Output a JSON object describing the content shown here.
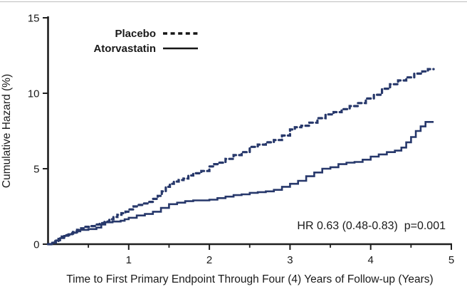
{
  "chart_data": {
    "type": "line",
    "subtype": "step-survival",
    "title": "",
    "xlabel": "Time to First Primary Endpoint Through Four (4) Years of Follow-up (Years)",
    "ylabel": "Cumulative Hazard (%)",
    "xlim": [
      0,
      5
    ],
    "ylim": [
      0,
      15
    ],
    "x_major_ticks": [
      1,
      2,
      3,
      4,
      5
    ],
    "x_minor_ticks": [
      0.5,
      1.5,
      2.5,
      3.5,
      4.5
    ],
    "y_ticks": [
      0,
      5,
      10,
      15
    ],
    "grid": "off",
    "legend_position": "top-left-inside",
    "annotation": "HR 0.63 (0.48-0.83)  p=0.001",
    "curve_color": "#27386b",
    "legend_sample_color": "#161616",
    "axis_color": "#1f1f1f",
    "legend": [
      {
        "name": "Placebo",
        "style": "dashed"
      },
      {
        "name": "Atorvastatin",
        "style": "solid"
      }
    ],
    "series": [
      {
        "name": "Placebo",
        "style": "dashed",
        "color": "#27386b",
        "points": [
          [
            0,
            0
          ],
          [
            0.05,
            0.1
          ],
          [
            0.09,
            0.2
          ],
          [
            0.13,
            0.35
          ],
          [
            0.17,
            0.5
          ],
          [
            0.21,
            0.6
          ],
          [
            0.26,
            0.7
          ],
          [
            0.31,
            0.8
          ],
          [
            0.36,
            0.95
          ],
          [
            0.41,
            1.05
          ],
          [
            0.46,
            1.15
          ],
          [
            0.52,
            1.2
          ],
          [
            0.58,
            1.3
          ],
          [
            0.64,
            1.4
          ],
          [
            0.7,
            1.5
          ],
          [
            0.76,
            1.65
          ],
          [
            0.81,
            1.8
          ],
          [
            0.86,
            1.95
          ],
          [
            0.91,
            2.05
          ],
          [
            0.96,
            2.15
          ],
          [
            1.01,
            2.3
          ],
          [
            1.06,
            2.5
          ],
          [
            1.12,
            2.6
          ],
          [
            1.18,
            2.7
          ],
          [
            1.24,
            2.8
          ],
          [
            1.3,
            3.0
          ],
          [
            1.36,
            3.2
          ],
          [
            1.41,
            3.5
          ],
          [
            1.46,
            3.8
          ],
          [
            1.51,
            4.0
          ],
          [
            1.56,
            4.15
          ],
          [
            1.62,
            4.25
          ],
          [
            1.68,
            4.35
          ],
          [
            1.74,
            4.55
          ],
          [
            1.8,
            4.7
          ],
          [
            1.9,
            4.85
          ],
          [
            2.0,
            5.15
          ],
          [
            2.06,
            5.3
          ],
          [
            2.12,
            5.4
          ],
          [
            2.2,
            5.65
          ],
          [
            2.3,
            5.9
          ],
          [
            2.4,
            6.1
          ],
          [
            2.5,
            6.45
          ],
          [
            2.6,
            6.6
          ],
          [
            2.7,
            6.75
          ],
          [
            2.8,
            6.9
          ],
          [
            2.9,
            7.2
          ],
          [
            3.0,
            7.6
          ],
          [
            3.06,
            7.75
          ],
          [
            3.14,
            7.85
          ],
          [
            3.24,
            8.05
          ],
          [
            3.34,
            8.35
          ],
          [
            3.44,
            8.6
          ],
          [
            3.54,
            8.75
          ],
          [
            3.64,
            8.95
          ],
          [
            3.74,
            9.15
          ],
          [
            3.84,
            9.35
          ],
          [
            3.94,
            9.65
          ],
          [
            4.04,
            9.9
          ],
          [
            4.14,
            10.3
          ],
          [
            4.24,
            10.6
          ],
          [
            4.34,
            10.85
          ],
          [
            4.44,
            11.05
          ],
          [
            4.54,
            11.3
          ],
          [
            4.64,
            11.45
          ],
          [
            4.71,
            11.6
          ],
          [
            4.78,
            11.6
          ]
        ]
      },
      {
        "name": "Atorvastatin",
        "style": "solid",
        "color": "#27386b",
        "points": [
          [
            0,
            0
          ],
          [
            0.05,
            0.1
          ],
          [
            0.1,
            0.25
          ],
          [
            0.15,
            0.4
          ],
          [
            0.2,
            0.55
          ],
          [
            0.25,
            0.65
          ],
          [
            0.3,
            0.75
          ],
          [
            0.35,
            0.85
          ],
          [
            0.4,
            0.95
          ],
          [
            0.5,
            1.0
          ],
          [
            0.6,
            1.1
          ],
          [
            0.66,
            1.3
          ],
          [
            0.71,
            1.45
          ],
          [
            0.8,
            1.5
          ],
          [
            0.9,
            1.55
          ],
          [
            0.95,
            1.65
          ],
          [
            1.0,
            1.75
          ],
          [
            1.1,
            1.9
          ],
          [
            1.2,
            2.0
          ],
          [
            1.3,
            2.15
          ],
          [
            1.4,
            2.4
          ],
          [
            1.5,
            2.65
          ],
          [
            1.6,
            2.75
          ],
          [
            1.7,
            2.85
          ],
          [
            1.8,
            2.9
          ],
          [
            2.0,
            2.95
          ],
          [
            2.1,
            3.05
          ],
          [
            2.2,
            3.15
          ],
          [
            2.3,
            3.25
          ],
          [
            2.4,
            3.3
          ],
          [
            2.5,
            3.4
          ],
          [
            2.6,
            3.45
          ],
          [
            2.7,
            3.5
          ],
          [
            2.8,
            3.6
          ],
          [
            2.9,
            3.8
          ],
          [
            3.0,
            4.0
          ],
          [
            3.1,
            4.2
          ],
          [
            3.2,
            4.5
          ],
          [
            3.3,
            4.75
          ],
          [
            3.4,
            5.0
          ],
          [
            3.5,
            5.1
          ],
          [
            3.6,
            5.3
          ],
          [
            3.7,
            5.4
          ],
          [
            3.8,
            5.45
          ],
          [
            3.9,
            5.6
          ],
          [
            4.0,
            5.8
          ],
          [
            4.1,
            5.95
          ],
          [
            4.2,
            6.1
          ],
          [
            4.3,
            6.2
          ],
          [
            4.38,
            6.4
          ],
          [
            4.44,
            6.75
          ],
          [
            4.5,
            7.1
          ],
          [
            4.56,
            7.5
          ],
          [
            4.62,
            7.8
          ],
          [
            4.68,
            8.1
          ],
          [
            4.78,
            8.1
          ]
        ]
      }
    ]
  }
}
